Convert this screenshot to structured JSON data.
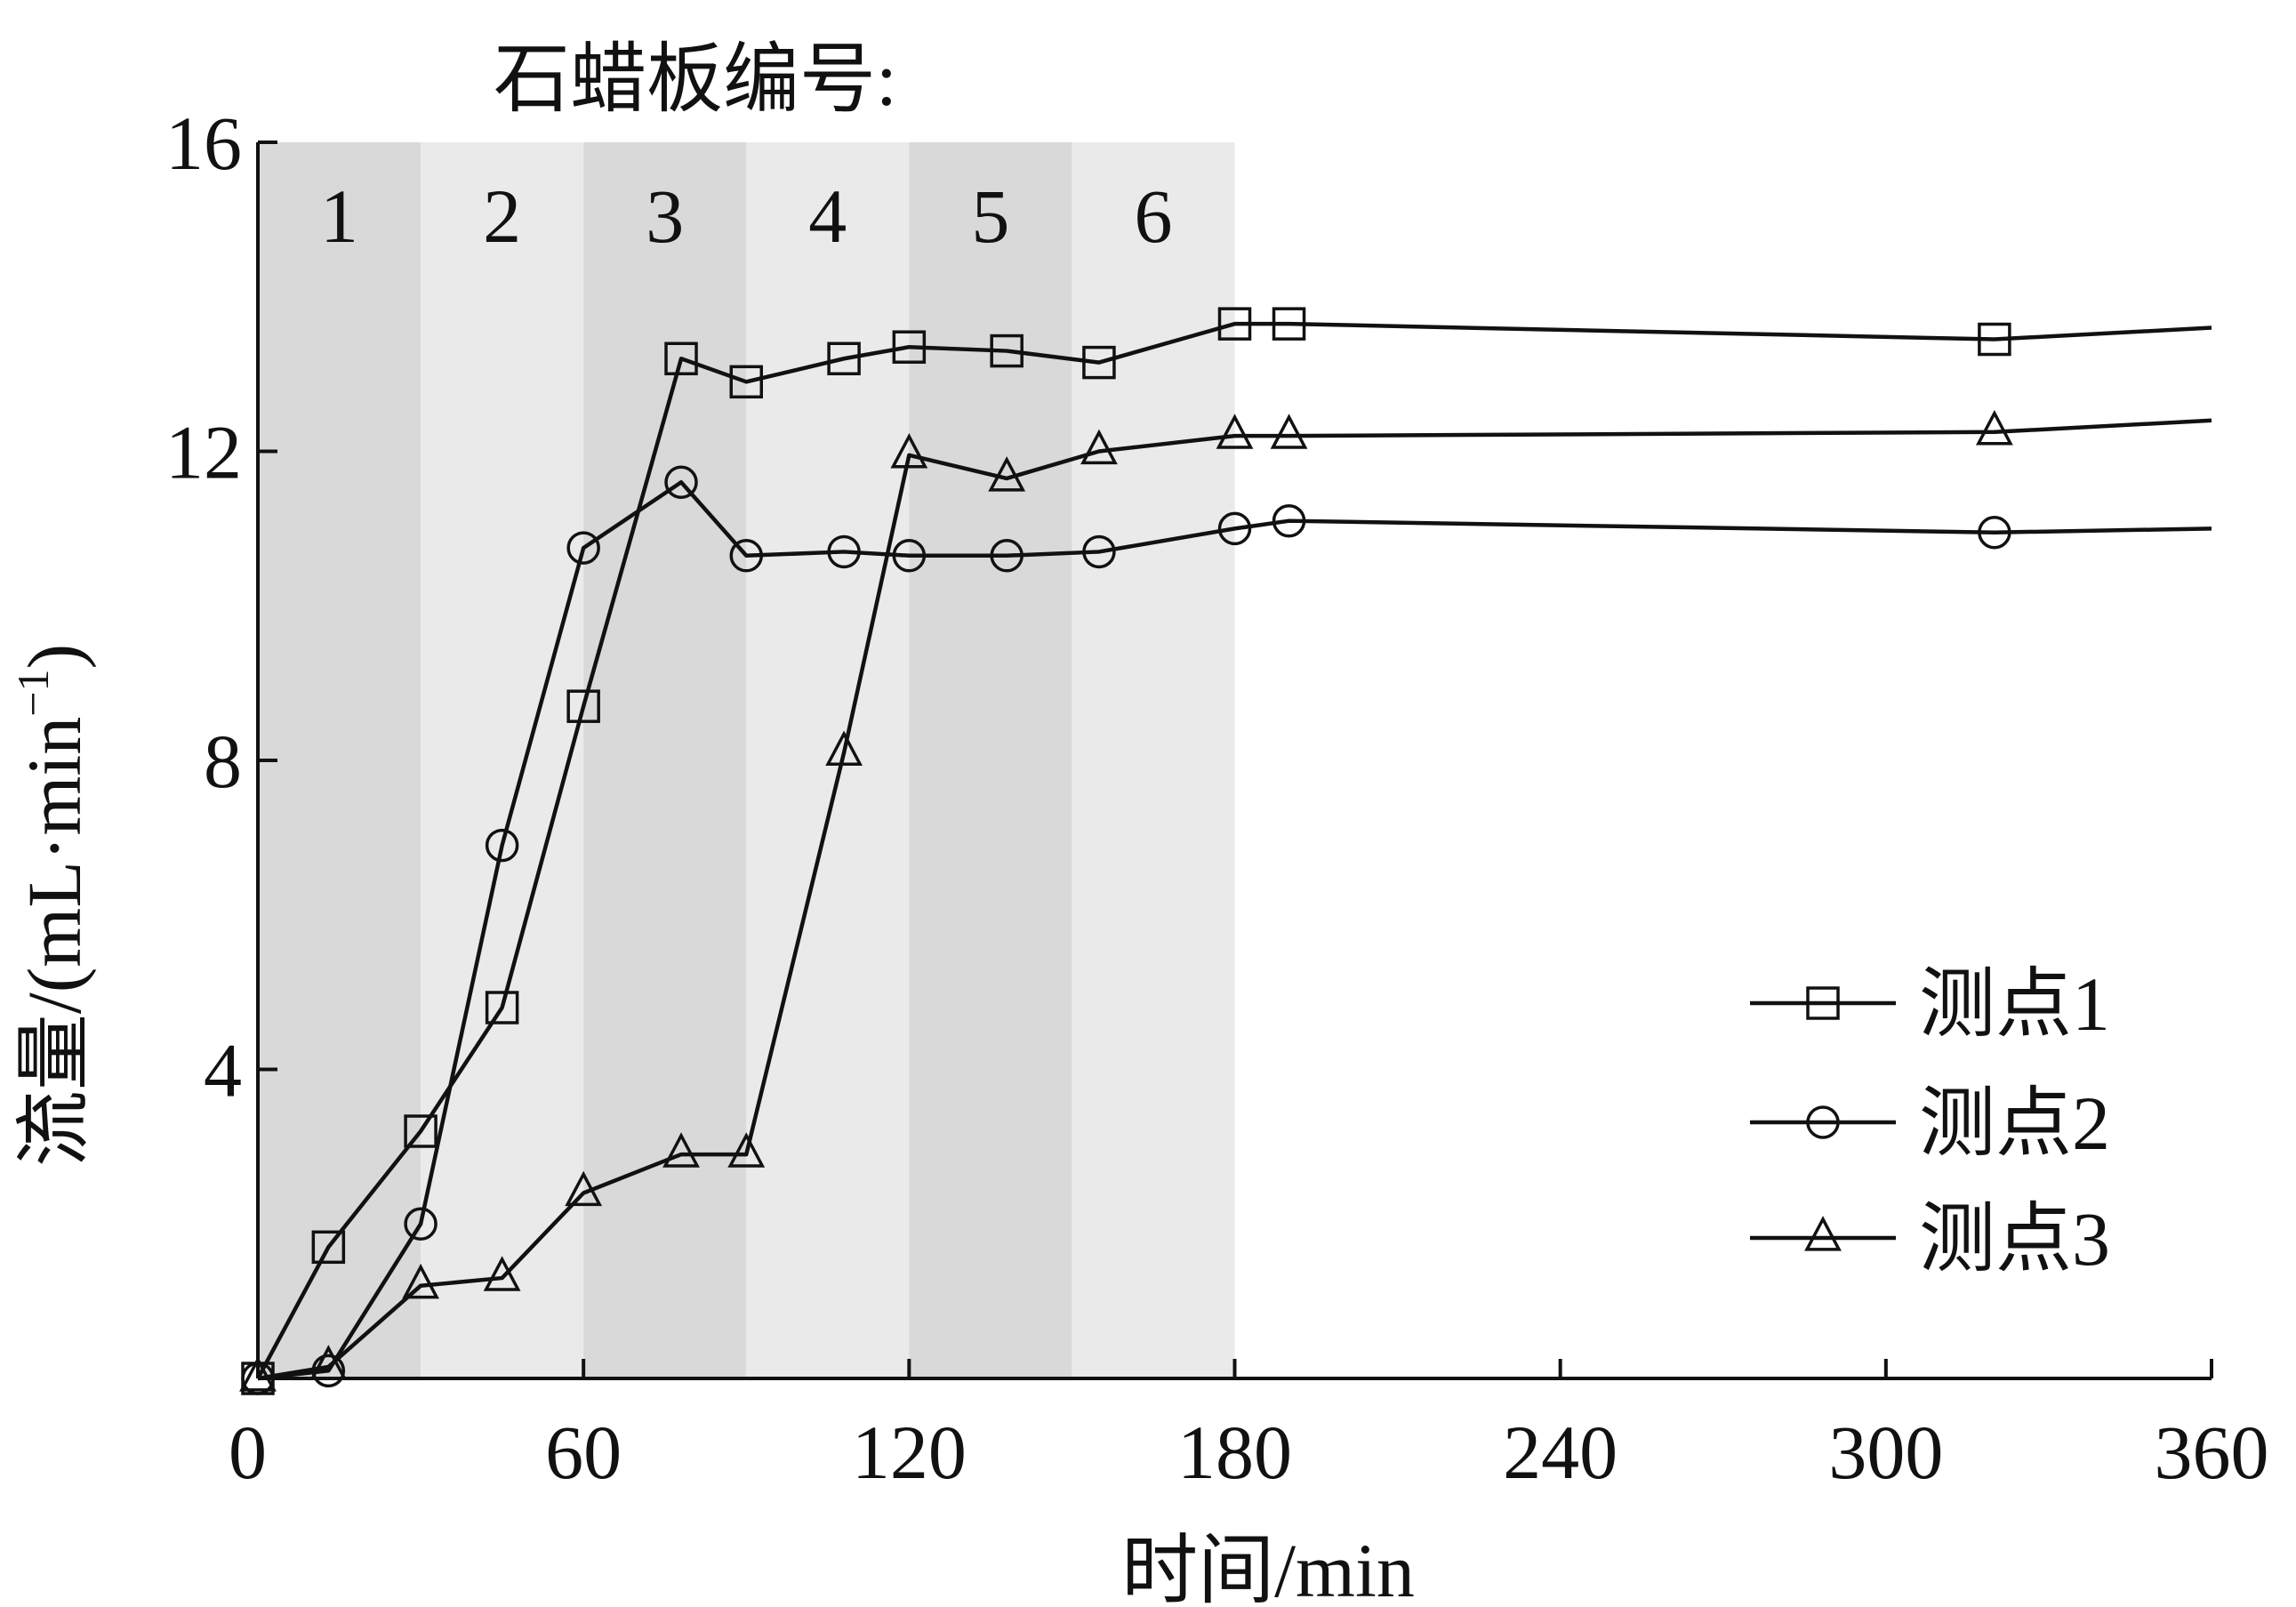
{
  "chart_data": {
    "type": "line",
    "title": "石蜡板编号:",
    "xlabel": "时间/min",
    "ylabel": "流量/(mL·min",
    "ylabel_sup": "−1",
    "ylabel_close": ")",
    "xlim": [
      0,
      360
    ],
    "ylim": [
      0,
      16
    ],
    "xticks": [
      0,
      60,
      120,
      180,
      240,
      300,
      360
    ],
    "yticks": [
      4,
      8,
      12,
      16
    ],
    "grid": false,
    "legend": "bottom-right",
    "bands": [
      {
        "label": "1",
        "x0": 0,
        "x1": 30,
        "color": "#d9d9d9"
      },
      {
        "label": "2",
        "x0": 30,
        "x1": 60,
        "color": "#eaeaea"
      },
      {
        "label": "3",
        "x0": 60,
        "x1": 90,
        "color": "#d9d9d9"
      },
      {
        "label": "4",
        "x0": 90,
        "x1": 120,
        "color": "#eaeaea"
      },
      {
        "label": "5",
        "x0": 120,
        "x1": 150,
        "color": "#d9d9d9"
      },
      {
        "label": "6",
        "x0": 150,
        "x1": 180,
        "color": "#eaeaea"
      }
    ],
    "series": [
      {
        "name": "测点1",
        "marker": "square",
        "x": [
          0,
          13,
          30,
          45,
          60,
          78,
          90,
          108,
          120,
          138,
          155,
          180,
          190,
          320
        ],
        "y": [
          0,
          1.7,
          3.2,
          4.8,
          8.7,
          13.2,
          12.9,
          13.2,
          13.35,
          13.3,
          13.15,
          13.65,
          13.65,
          13.45
        ],
        "line_end": {
          "x": 360,
          "y": 13.6
        }
      },
      {
        "name": "测点2",
        "marker": "circle",
        "x": [
          0,
          13,
          30,
          45,
          60,
          78,
          90,
          108,
          120,
          138,
          155,
          180,
          190,
          320
        ],
        "y": [
          0,
          0.1,
          2.0,
          6.9,
          10.75,
          11.6,
          10.65,
          10.7,
          10.65,
          10.65,
          10.7,
          11.0,
          11.1,
          10.95
        ],
        "line_end": {
          "x": 360,
          "y": 11.0
        }
      },
      {
        "name": "测点3",
        "marker": "triangle",
        "x": [
          0,
          13,
          30,
          45,
          60,
          78,
          90,
          108,
          120,
          138,
          155,
          180,
          190,
          320
        ],
        "y": [
          0,
          0.15,
          1.2,
          1.3,
          2.4,
          2.9,
          2.9,
          8.1,
          11.95,
          11.65,
          12.0,
          12.2,
          12.2,
          12.25
        ],
        "line_end": {
          "x": 360,
          "y": 12.4
        }
      }
    ]
  }
}
